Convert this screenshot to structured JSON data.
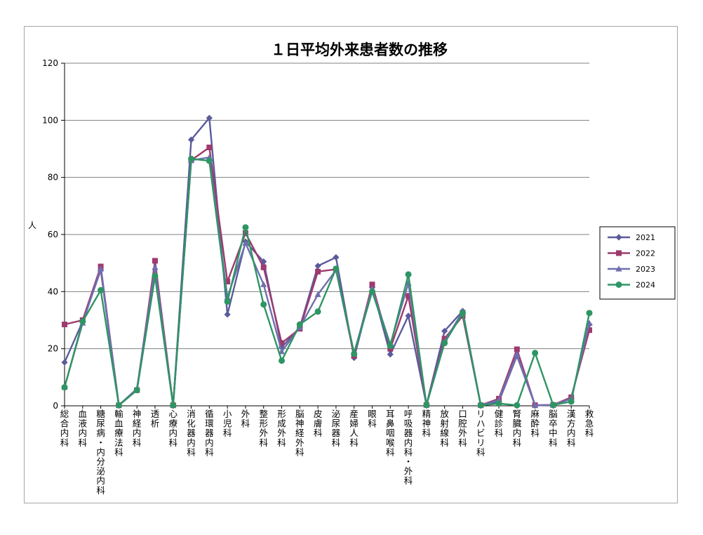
{
  "chart_data": {
    "type": "line",
    "title": "１日平均外来患者数の推移",
    "ylabel": "人",
    "ylim": [
      0,
      120
    ],
    "yticks": [
      0,
      20,
      40,
      60,
      80,
      100,
      120
    ],
    "grid": true,
    "legend_position": "right",
    "categories": [
      "総合内科",
      "血液内科",
      "糖尿病・内分泌内科",
      "輸血療法科",
      "神経内科",
      "透析",
      "心療内科",
      "消化器内科",
      "循環器内科",
      "小児科",
      "外科",
      "整形外科",
      "形成外科",
      "脳神経外科",
      "皮膚科",
      "泌尿器科",
      "産婦人科",
      "眼科",
      "耳鼻咽喉科",
      "呼吸器内科・外科",
      "精神科",
      "放射線科",
      "口腔外科",
      "リハビリ科",
      "健診科",
      "腎臓内科",
      "麻酔科",
      "脳卒中科",
      "漢方内科",
      "救急科"
    ],
    "series": [
      {
        "name": "2021",
        "color": "#5b5b9b",
        "marker": "diamond",
        "values": [
          15.2,
          29.5,
          47.5,
          0.2,
          5.5,
          45.5,
          0.2,
          93.2,
          100.8,
          32.0,
          57.5,
          50.5,
          20.5,
          27.5,
          49.0,
          52.0,
          16.8,
          41.5,
          18.0,
          31.5,
          0.3,
          26.2,
          33.2,
          0.2,
          1.5,
          17.5,
          0.2,
          0.3,
          2.5,
          28.5
        ]
      },
      {
        "name": "2022",
        "color": "#9e3a6e",
        "marker": "square",
        "values": [
          28.5,
          30.0,
          48.8,
          0.2,
          5.5,
          50.8,
          0.2,
          86.0,
          90.5,
          43.5,
          60.5,
          48.5,
          22.0,
          27.0,
          47.0,
          47.8,
          17.5,
          42.5,
          20.0,
          38.5,
          0.3,
          23.5,
          31.5,
          0.2,
          2.5,
          19.8,
          0.2,
          0.3,
          3.0,
          26.5
        ]
      },
      {
        "name": "2023",
        "color": "#6f6faf",
        "marker": "triangle",
        "values": [
          6.5,
          29.0,
          48.0,
          0.2,
          6.0,
          48.5,
          0.2,
          86.0,
          87.0,
          38.0,
          57.0,
          42.5,
          19.0,
          27.5,
          39.0,
          47.5,
          18.5,
          41.0,
          21.5,
          43.0,
          0.3,
          22.5,
          33.0,
          0.2,
          2.0,
          18.0,
          0.2,
          0.3,
          2.5,
          29.0
        ]
      },
      {
        "name": "2024",
        "color": "#2e9564",
        "marker": "circle",
        "values": [
          6.5,
          29.5,
          40.5,
          0.2,
          5.5,
          45.5,
          0.2,
          86.5,
          85.8,
          36.5,
          62.5,
          35.5,
          15.8,
          28.5,
          33.0,
          48.0,
          18.2,
          40.0,
          21.0,
          46.0,
          0.3,
          22.0,
          32.5,
          0.2,
          0.8,
          0.2,
          18.5,
          0.3,
          1.5,
          32.5
        ]
      }
    ]
  }
}
